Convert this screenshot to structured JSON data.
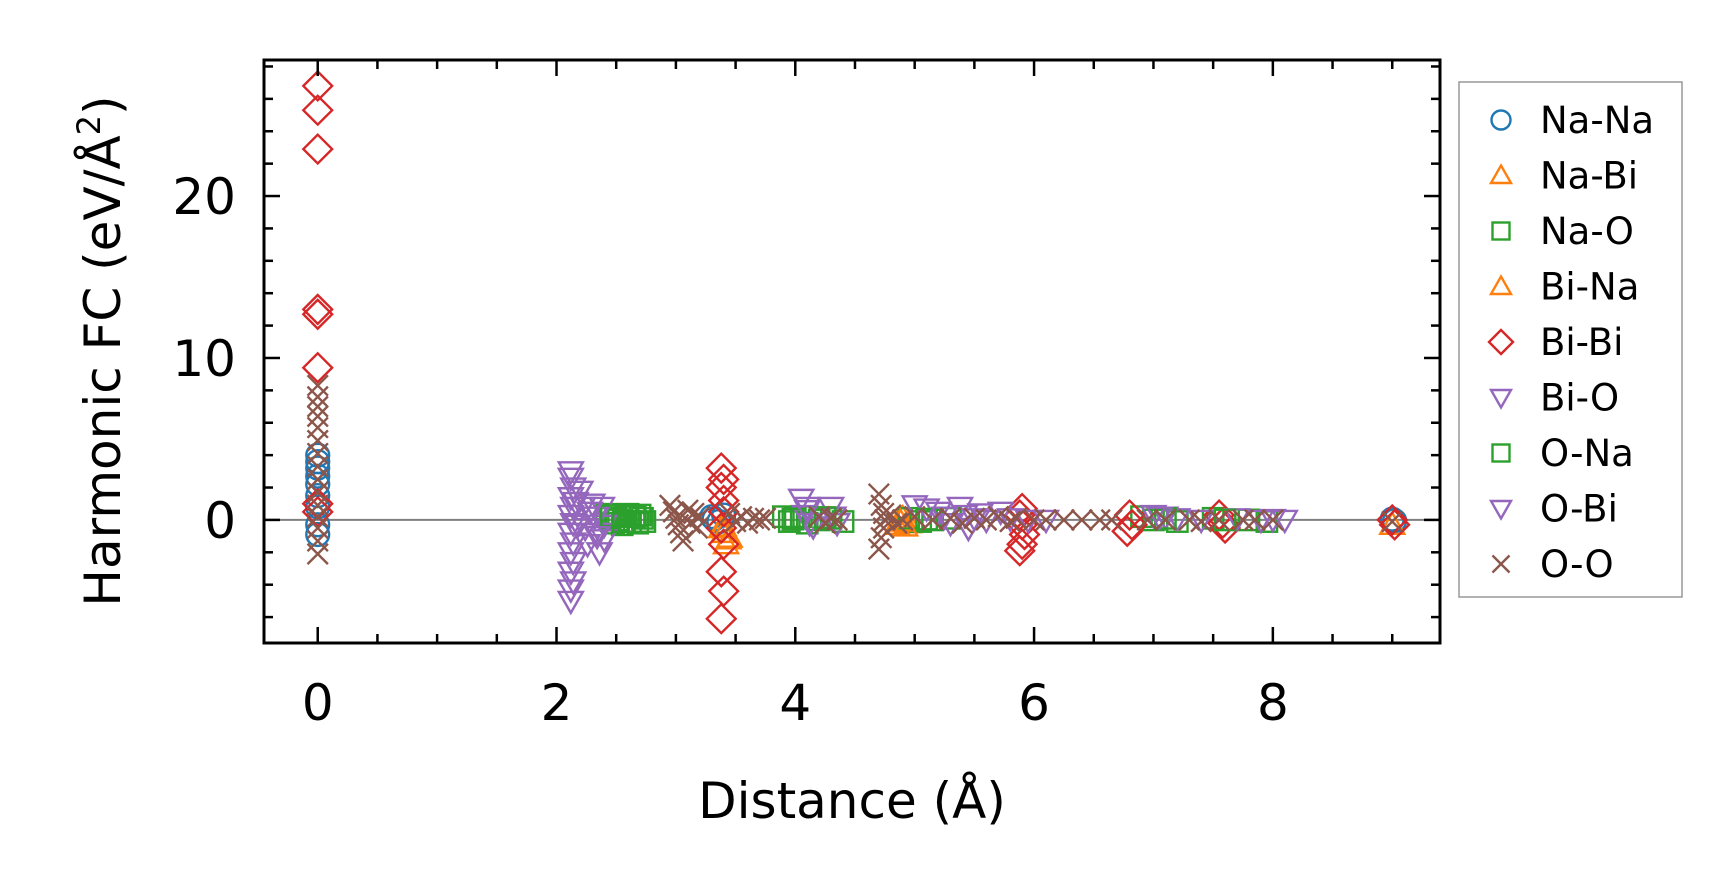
{
  "chart_data": {
    "type": "scatter",
    "xlabel": "Distance (Å)",
    "ylabel": "Harmonic FC (eV/Å",
    "ylabel_sup": "2",
    "ylabel_close": ")",
    "xlim": [
      -0.45,
      9.4
    ],
    "ylim": [
      -7.6,
      28.4
    ],
    "xticks": [
      0,
      2,
      4,
      6,
      8
    ],
    "xtick_labels": [
      "0",
      "2",
      "4",
      "6",
      "8"
    ],
    "yticks": [
      0,
      10,
      20
    ],
    "ytick_labels": [
      "0",
      "10",
      "20"
    ],
    "x_minor_step": 0.5,
    "y_minor_step": 2,
    "zero_line": true,
    "grid": false,
    "legend_position": "outside-right",
    "series": [
      {
        "name": "Na-Na",
        "marker": "circle",
        "color": "#1f77b4",
        "points": [
          [
            0,
            4.0
          ],
          [
            0,
            3.6
          ],
          [
            0,
            3.2
          ],
          [
            0,
            2.7
          ],
          [
            0,
            2.2
          ],
          [
            0,
            1.5
          ],
          [
            0,
            0.8
          ],
          [
            0,
            -0.3
          ],
          [
            0,
            -0.9
          ],
          [
            3.3,
            0.2
          ],
          [
            3.32,
            0.05
          ],
          [
            3.36,
            -0.1
          ],
          [
            3.4,
            0.3
          ],
          [
            9.0,
            0.05
          ],
          [
            9.02,
            -0.05
          ]
        ]
      },
      {
        "name": "Na-Bi",
        "marker": "triangle-up",
        "color": "#ff7f0e",
        "points": [
          [
            3.4,
            -0.4
          ],
          [
            3.4,
            -0.8
          ],
          [
            3.42,
            -1.5
          ],
          [
            3.45,
            -1.1
          ],
          [
            4.85,
            -0.3
          ],
          [
            4.9,
            0.1
          ],
          [
            4.95,
            -0.2
          ],
          [
            9.0,
            -0.3
          ]
        ]
      },
      {
        "name": "Na-O",
        "marker": "square",
        "color": "#2ca02c",
        "points": [
          [
            2.42,
            0.35
          ],
          [
            2.45,
            0.1
          ],
          [
            2.48,
            -0.2
          ],
          [
            2.5,
            0.3
          ],
          [
            2.52,
            0.0
          ],
          [
            2.55,
            -0.3
          ],
          [
            2.58,
            0.2
          ],
          [
            2.6,
            0.35
          ],
          [
            2.62,
            -0.1
          ],
          [
            2.65,
            0.2
          ],
          [
            2.68,
            -0.2
          ],
          [
            2.7,
            0.3
          ],
          [
            2.72,
            0.1
          ],
          [
            2.74,
            -0.1
          ],
          [
            3.9,
            0.2
          ],
          [
            3.95,
            -0.1
          ],
          [
            4.0,
            0.1
          ],
          [
            4.05,
            0.2
          ],
          [
            4.1,
            -0.2
          ],
          [
            4.2,
            0.0
          ],
          [
            4.3,
            0.1
          ],
          [
            4.4,
            -0.1
          ],
          [
            4.95,
            0.1
          ],
          [
            5.05,
            -0.1
          ],
          [
            5.15,
            0.0
          ],
          [
            5.3,
            0.1
          ],
          [
            6.9,
            0.2
          ],
          [
            7.0,
            0.0
          ],
          [
            7.2,
            -0.1
          ],
          [
            7.5,
            0.1
          ],
          [
            7.8,
            0.0
          ],
          [
            7.95,
            -0.1
          ]
        ]
      },
      {
        "name": "Bi-Na",
        "marker": "triangle-up",
        "color": "#ff7f0e",
        "points": [
          [
            3.38,
            -0.5
          ],
          [
            3.44,
            -1.2
          ],
          [
            4.88,
            -0.1
          ],
          [
            4.92,
            -0.4
          ]
        ]
      },
      {
        "name": "Bi-Bi",
        "marker": "diamond",
        "color": "#d62728",
        "points": [
          [
            0,
            26.8
          ],
          [
            0,
            25.3
          ],
          [
            0,
            22.9
          ],
          [
            0,
            13.0
          ],
          [
            0,
            12.7
          ],
          [
            0,
            9.4
          ],
          [
            0,
            1.0
          ],
          [
            0,
            0.5
          ],
          [
            3.38,
            3.2
          ],
          [
            3.4,
            2.5
          ],
          [
            3.38,
            2.0
          ],
          [
            3.4,
            1.2
          ],
          [
            3.4,
            0.5
          ],
          [
            3.38,
            -0.5
          ],
          [
            3.4,
            -1.5
          ],
          [
            3.38,
            -3.2
          ],
          [
            3.4,
            -4.4
          ],
          [
            3.38,
            -6.1
          ],
          [
            5.9,
            0.7
          ],
          [
            5.88,
            0.3
          ],
          [
            5.9,
            -0.3
          ],
          [
            5.92,
            -0.9
          ],
          [
            5.9,
            -1.5
          ],
          [
            5.88,
            -1.9
          ],
          [
            6.8,
            0.3
          ],
          [
            6.82,
            -0.3
          ],
          [
            6.78,
            -0.7
          ],
          [
            7.55,
            0.3
          ],
          [
            7.58,
            -0.2
          ],
          [
            7.6,
            -0.5
          ],
          [
            9.0,
            0.0
          ],
          [
            9.02,
            -0.3
          ]
        ]
      },
      {
        "name": "Bi-O",
        "marker": "triangle-down",
        "color": "#9467bd",
        "points": [
          [
            2.12,
            3.0
          ],
          [
            2.12,
            2.6
          ],
          [
            2.14,
            2.0
          ],
          [
            2.12,
            1.4
          ],
          [
            2.14,
            0.8
          ],
          [
            2.12,
            0.3
          ],
          [
            2.14,
            -0.2
          ],
          [
            2.12,
            -0.8
          ],
          [
            2.14,
            -1.4
          ],
          [
            2.12,
            -2.0
          ],
          [
            2.14,
            -2.6
          ],
          [
            2.12,
            -3.2
          ],
          [
            2.14,
            -3.8
          ],
          [
            2.12,
            -4.3
          ],
          [
            2.12,
            -5.0
          ],
          [
            2.2,
            1.8
          ],
          [
            2.22,
            0.8
          ],
          [
            2.24,
            -0.5
          ],
          [
            2.26,
            -1.5
          ],
          [
            2.3,
            1.0
          ],
          [
            2.32,
            0.2
          ],
          [
            2.34,
            -0.8
          ],
          [
            2.36,
            -2.0
          ],
          [
            2.38,
            0.8
          ],
          [
            2.4,
            -0.3
          ],
          [
            2.4,
            -1.2
          ],
          [
            4.05,
            1.3
          ],
          [
            4.1,
            0.8
          ],
          [
            4.08,
            0.3
          ],
          [
            4.12,
            -0.2
          ],
          [
            4.15,
            -0.4
          ],
          [
            4.3,
            0.8
          ],
          [
            4.32,
            0.2
          ],
          [
            4.35,
            -0.2
          ],
          [
            5.0,
            0.9
          ],
          [
            5.1,
            0.7
          ],
          [
            5.2,
            0.5
          ],
          [
            5.3,
            -0.2
          ],
          [
            5.38,
            0.8
          ],
          [
            5.42,
            0.3
          ],
          [
            5.45,
            -0.5
          ],
          [
            5.55,
            0.4
          ],
          [
            5.6,
            0.0
          ],
          [
            5.72,
            0.5
          ],
          [
            5.8,
            0.1
          ],
          [
            5.95,
            0.0
          ],
          [
            6.1,
            0.0
          ],
          [
            7.0,
            0.3
          ],
          [
            7.1,
            0.2
          ],
          [
            7.2,
            0.1
          ],
          [
            7.4,
            0.0
          ],
          [
            7.7,
            0.1
          ],
          [
            7.9,
            0.0
          ],
          [
            8.0,
            0.05
          ],
          [
            8.1,
            0.0
          ]
        ]
      },
      {
        "name": "O-Na",
        "marker": "square",
        "color": "#2ca02c",
        "points": [
          [
            2.46,
            0.25
          ],
          [
            2.56,
            -0.1
          ],
          [
            2.66,
            0.25
          ],
          [
            3.98,
            0.05
          ],
          [
            4.25,
            0.15
          ],
          [
            5.1,
            0.05
          ],
          [
            7.1,
            0.1
          ],
          [
            7.6,
            0.0
          ]
        ]
      },
      {
        "name": "O-Bi",
        "marker": "triangle-down",
        "color": "#9467bd",
        "points": [
          [
            2.16,
            1.1
          ],
          [
            2.18,
            -0.3
          ],
          [
            2.28,
            0.5
          ],
          [
            2.34,
            -1.0
          ],
          [
            4.1,
            0.6
          ],
          [
            5.25,
            0.2
          ],
          [
            5.5,
            0.1
          ],
          [
            7.05,
            0.2
          ]
        ]
      },
      {
        "name": "O-O",
        "marker": "x",
        "color": "#8c564b",
        "points": [
          [
            0,
            8.3
          ],
          [
            0,
            7.6
          ],
          [
            0,
            7.0
          ],
          [
            0,
            6.4
          ],
          [
            0,
            5.7
          ],
          [
            0,
            4.9
          ],
          [
            0,
            4.1
          ],
          [
            0,
            3.3
          ],
          [
            0,
            2.5
          ],
          [
            0,
            1.7
          ],
          [
            0,
            0.9
          ],
          [
            0,
            0.2
          ],
          [
            0,
            -0.5
          ],
          [
            0,
            -1.3
          ],
          [
            0,
            -2.1
          ],
          [
            2.95,
            0.9
          ],
          [
            2.98,
            0.5
          ],
          [
            3.0,
            0.1
          ],
          [
            3.02,
            -0.3
          ],
          [
            3.04,
            -0.8
          ],
          [
            3.06,
            -1.3
          ],
          [
            3.1,
            0.6
          ],
          [
            3.12,
            -0.2
          ],
          [
            3.15,
            0.4
          ],
          [
            3.18,
            -0.5
          ],
          [
            3.2,
            0.2
          ],
          [
            3.45,
            0.4
          ],
          [
            3.5,
            -0.1
          ],
          [
            3.55,
            0.2
          ],
          [
            3.6,
            -0.2
          ],
          [
            3.65,
            0.1
          ],
          [
            3.7,
            0.0
          ],
          [
            3.75,
            0.1
          ],
          [
            4.2,
            0.2
          ],
          [
            4.25,
            -0.2
          ],
          [
            4.3,
            0.1
          ],
          [
            4.35,
            0.0
          ],
          [
            4.7,
            1.6
          ],
          [
            4.72,
            0.9
          ],
          [
            4.74,
            0.4
          ],
          [
            4.75,
            0.0
          ],
          [
            4.74,
            -0.5
          ],
          [
            4.72,
            -1.1
          ],
          [
            4.7,
            -1.8
          ],
          [
            4.8,
            0.3
          ],
          [
            4.85,
            -0.2
          ],
          [
            4.9,
            0.0
          ],
          [
            5.0,
            0.2
          ],
          [
            5.15,
            0.0
          ],
          [
            5.3,
            0.1
          ],
          [
            5.4,
            -0.2
          ],
          [
            5.5,
            0.1
          ],
          [
            5.6,
            0.0
          ],
          [
            5.7,
            0.2
          ],
          [
            5.8,
            -0.1
          ],
          [
            5.85,
            0.1
          ],
          [
            6.0,
            0.0
          ],
          [
            6.1,
            0.0
          ],
          [
            6.25,
            0.0
          ],
          [
            6.4,
            0.0
          ],
          [
            6.55,
            0.0
          ],
          [
            6.65,
            0.0
          ],
          [
            6.95,
            0.0
          ],
          [
            7.1,
            0.0
          ],
          [
            7.3,
            0.0
          ],
          [
            7.4,
            -0.1
          ],
          [
            7.55,
            0.0
          ],
          [
            7.75,
            0.0
          ],
          [
            7.85,
            0.0
          ],
          [
            8.0,
            0.0
          ],
          [
            9.0,
            -0.1
          ]
        ]
      }
    ]
  }
}
